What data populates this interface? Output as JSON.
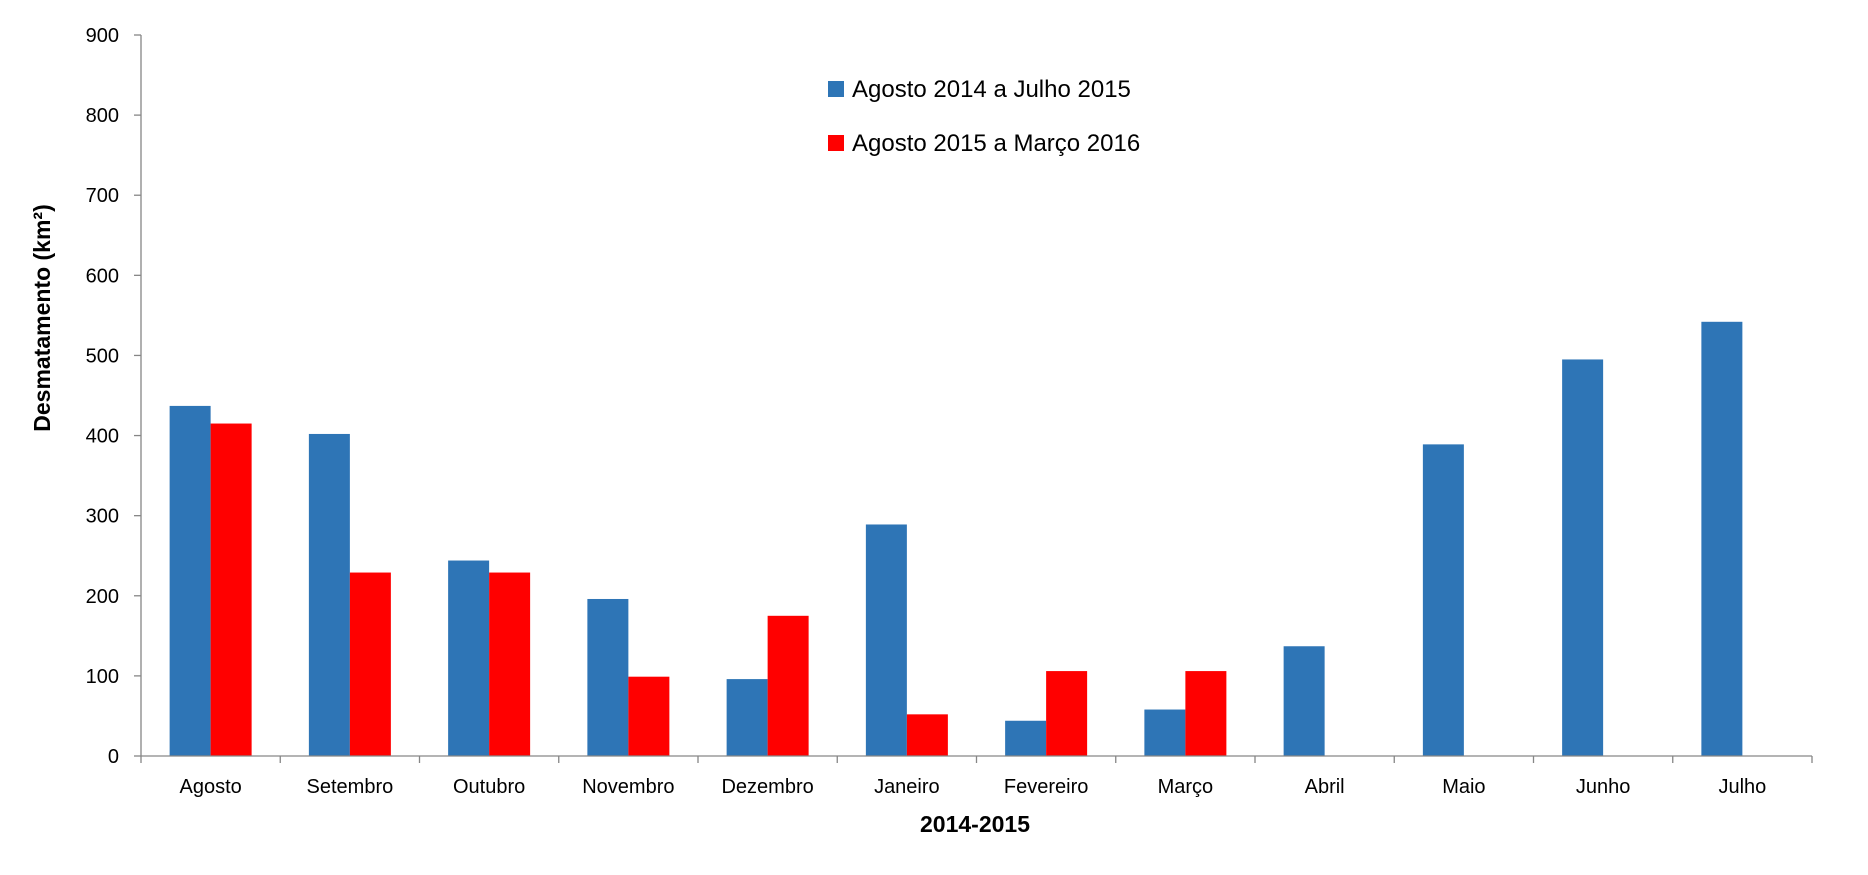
{
  "chart_data": {
    "type": "bar",
    "title": "",
    "xlabel": "2014-2015",
    "ylabel": "Desmatamento (km²)",
    "ylim": [
      0,
      900
    ],
    "yticks": [
      0,
      100,
      200,
      300,
      400,
      500,
      600,
      700,
      800,
      900
    ],
    "grid": false,
    "legend_position": "top-center",
    "categories": [
      "Agosto",
      "Setembro",
      "Outubro",
      "Novembro",
      "Dezembro",
      "Janeiro",
      "Fevereiro",
      "Março",
      "Abril",
      "Maio",
      "Junho",
      "Julho"
    ],
    "series": [
      {
        "name": "Agosto 2014 a Julho 2015",
        "color": "#2E75B6",
        "values": [
          437,
          402,
          244,
          196,
          96,
          289,
          44,
          58,
          137,
          389,
          495,
          542
        ]
      },
      {
        "name": "Agosto 2015 a Março 2016",
        "color": "#FF0000",
        "values": [
          415,
          229,
          229,
          99,
          175,
          52,
          106,
          106,
          null,
          null,
          null,
          null
        ]
      }
    ]
  }
}
